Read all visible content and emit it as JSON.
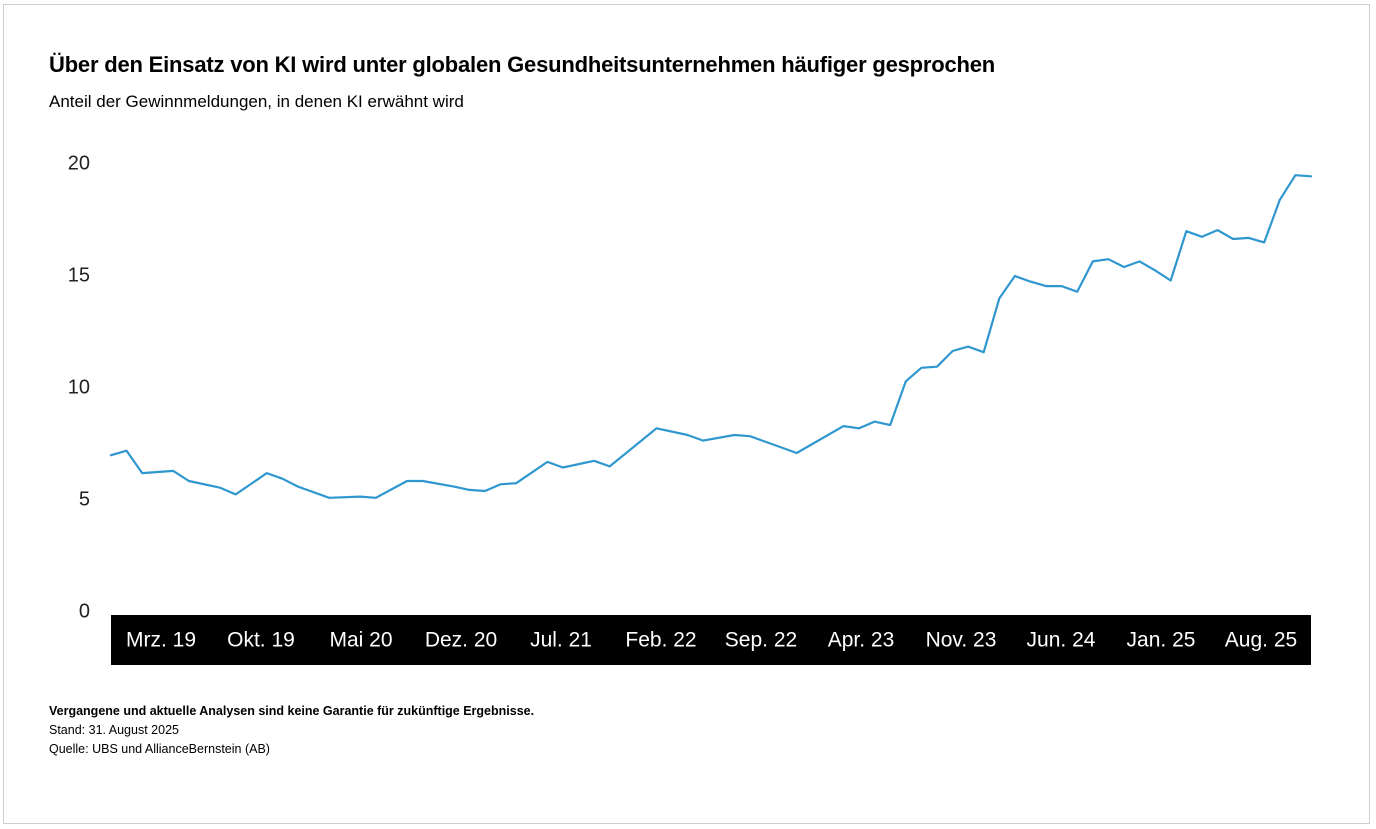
{
  "chart_data": {
    "type": "line",
    "title": "Über den Einsatz von KI wird unter globalen Gesundheitsunternehmen häufiger gesprochen",
    "subtitle": "Anteil der Gewinnmeldungen, in denen KI erwähnt wird",
    "xlabel": "",
    "ylabel": "",
    "ylim": [
      0,
      20
    ],
    "yticks": [
      0,
      5,
      10,
      15,
      20
    ],
    "xtick_labels": [
      "Mrz. 19",
      "Okt. 19",
      "Mai 20",
      "Dez. 20",
      "Jul. 21",
      "Feb. 22",
      "Sep. 22",
      "Apr. 23",
      "Nov. 23",
      "Jun. 24",
      "Jan. 25",
      "Aug. 25"
    ],
    "x_start": "Dez. 18",
    "x_end": "Sep. 25",
    "series": [
      {
        "name": "Anteil der Gewinnmeldungen mit KI-Erwähnung",
        "color": "#2f97cf",
        "points": [
          [
            0,
            7.0
          ],
          [
            1,
            7.2
          ],
          [
            2,
            6.2
          ],
          [
            4,
            6.3
          ],
          [
            5,
            5.85
          ],
          [
            7,
            5.55
          ],
          [
            8,
            5.25
          ],
          [
            10,
            6.2
          ],
          [
            11,
            5.95
          ],
          [
            12,
            5.6
          ],
          [
            14,
            5.1
          ],
          [
            16,
            5.15
          ],
          [
            17,
            5.1
          ],
          [
            19,
            5.85
          ],
          [
            20,
            5.85
          ],
          [
            22,
            5.6
          ],
          [
            23,
            5.45
          ],
          [
            24,
            5.4
          ],
          [
            25,
            5.7
          ],
          [
            26,
            5.75
          ],
          [
            28,
            6.7
          ],
          [
            29,
            6.45
          ],
          [
            31,
            6.75
          ],
          [
            32,
            6.5
          ],
          [
            35,
            8.2
          ],
          [
            37,
            7.9
          ],
          [
            38,
            7.65
          ],
          [
            40,
            7.9
          ],
          [
            41,
            7.85
          ],
          [
            44,
            7.1
          ],
          [
            47,
            8.3
          ],
          [
            48,
            8.2
          ],
          [
            49,
            8.5
          ],
          [
            50,
            8.35
          ],
          [
            51,
            10.3
          ],
          [
            52,
            10.9
          ],
          [
            53,
            10.95
          ],
          [
            54,
            11.65
          ],
          [
            55,
            11.85
          ],
          [
            56,
            11.6
          ],
          [
            57,
            14.0
          ],
          [
            58,
            15.0
          ],
          [
            59,
            14.75
          ],
          [
            60,
            14.55
          ],
          [
            61,
            14.55
          ],
          [
            62,
            14.3
          ],
          [
            63,
            15.65
          ],
          [
            64,
            15.75
          ],
          [
            65,
            15.4
          ],
          [
            66,
            15.65
          ],
          [
            67,
            15.25
          ],
          [
            68,
            14.8
          ],
          [
            69,
            17.0
          ],
          [
            70,
            16.75
          ],
          [
            71,
            17.05
          ],
          [
            72,
            16.65
          ],
          [
            73,
            16.7
          ],
          [
            74,
            16.5
          ],
          [
            75,
            18.4
          ],
          [
            76,
            19.5
          ],
          [
            77,
            19.45
          ]
        ]
      }
    ]
  },
  "footer": {
    "disclaimer": "Vergangene und aktuelle Analysen sind keine Garantie für zukünftige Ergebnisse.",
    "date": "Stand: 31. August 2025",
    "source": "Quelle: UBS und AllianceBernstein (AB)"
  }
}
